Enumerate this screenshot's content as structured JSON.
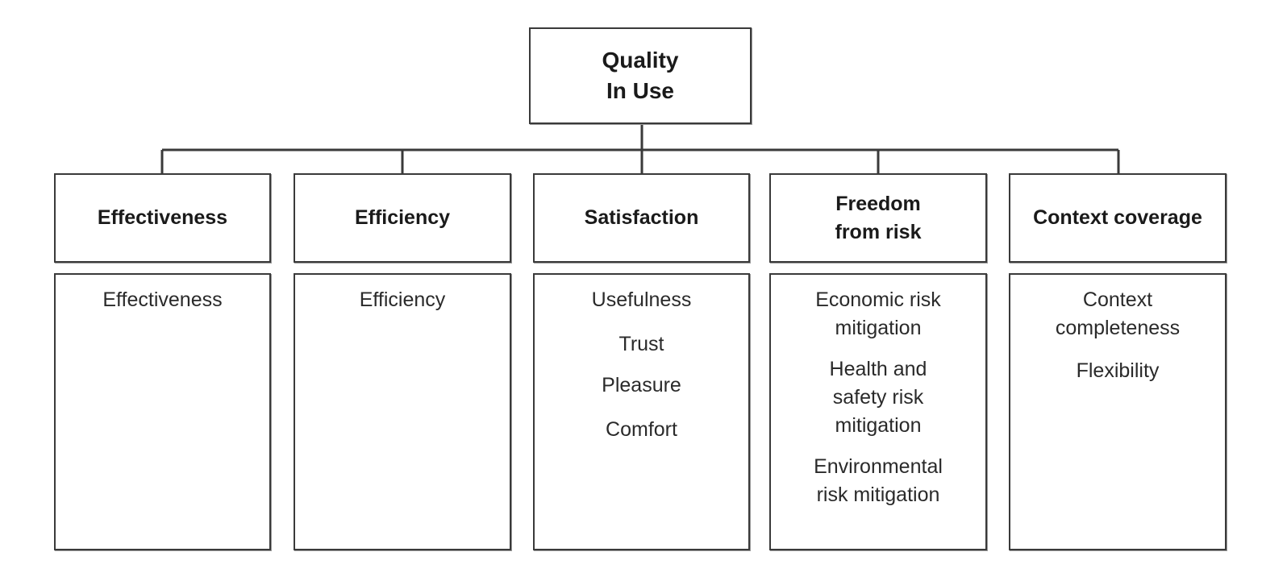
{
  "root": {
    "title": "Quality\nIn Use"
  },
  "characteristics": [
    {
      "name": "Effectiveness",
      "subcharacteristics": [
        "Effectiveness"
      ]
    },
    {
      "name": "Efficiency",
      "subcharacteristics": [
        "Efficiency"
      ]
    },
    {
      "name": "Satisfaction",
      "subcharacteristics": [
        "Usefulness",
        "Trust",
        "Pleasure",
        "Comfort"
      ]
    },
    {
      "name": "Freedom\nfrom risk",
      "subcharacteristics": [
        "Economic risk\nmitigation",
        "Health and\nsafety risk\nmitigation",
        "Environmental\nrisk mitigation"
      ]
    },
    {
      "name": "Context coverage",
      "subcharacteristics": [
        "Context\ncompleteness",
        "Flexibility"
      ]
    }
  ]
}
